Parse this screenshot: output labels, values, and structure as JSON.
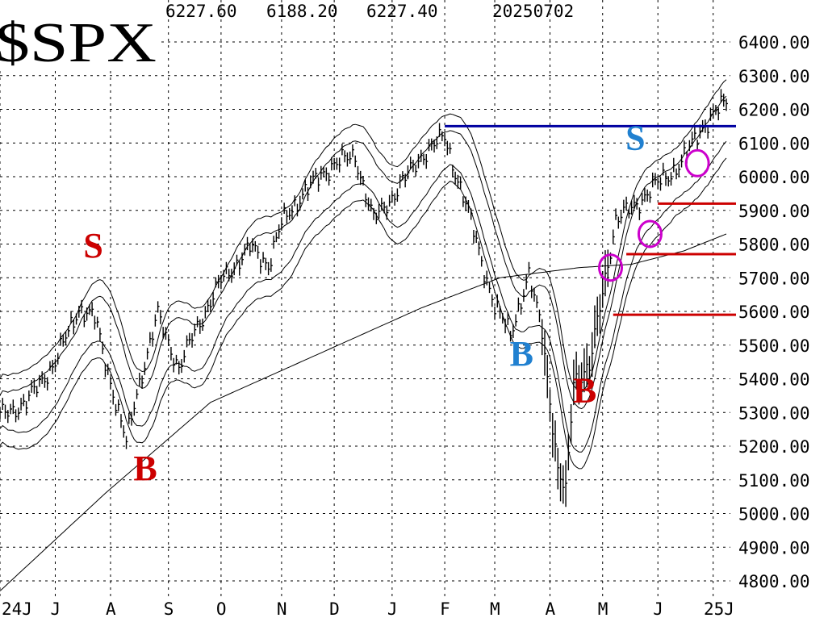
{
  "chart_data": {
    "type": "line",
    "symbol": "$SPX",
    "header": {
      "high": "6227.60",
      "low": "6188.20",
      "close": "6227.40",
      "date": "20250702"
    },
    "ylim": [
      4750,
      6450
    ],
    "grid": true,
    "yticks": [
      "6400.00",
      "6300.00",
      "6200.00",
      "6100.00",
      "6000.00",
      "5900.00",
      "5800.00",
      "5700.00",
      "5600.00",
      "5500.00",
      "5400.00",
      "5300.00",
      "5200.00",
      "5100.00",
      "5000.00",
      "4900.00",
      "4800.00"
    ],
    "ytick_values": [
      6400,
      6300,
      6200,
      6100,
      6000,
      5900,
      5800,
      5700,
      5600,
      5500,
      5400,
      5300,
      5200,
      5100,
      5000,
      4900,
      4800
    ],
    "months": [
      "24J",
      "J",
      "A",
      "S",
      "O",
      "N",
      "D",
      "J",
      "F",
      "M",
      "A",
      "M",
      "J",
      "25J"
    ],
    "month_index": [
      0,
      21,
      42,
      64,
      84,
      107,
      127,
      149,
      169,
      188,
      209,
      229,
      250,
      271
    ],
    "n_bars": 277,
    "close_anchors": [
      [
        0,
        5290
      ],
      [
        10,
        5330
      ],
      [
        21,
        5450
      ],
      [
        30,
        5610
      ],
      [
        36,
        5580
      ],
      [
        44,
        5330
      ],
      [
        48,
        5210
      ],
      [
        52,
        5360
      ],
      [
        60,
        5590
      ],
      [
        68,
        5430
      ],
      [
        74,
        5540
      ],
      [
        84,
        5690
      ],
      [
        95,
        5790
      ],
      [
        102,
        5740
      ],
      [
        107,
        5860
      ],
      [
        115,
        5950
      ],
      [
        127,
        6040
      ],
      [
        135,
        6060
      ],
      [
        142,
        5870
      ],
      [
        149,
        5940
      ],
      [
        160,
        6060
      ],
      [
        169,
        6120
      ],
      [
        174,
        5990
      ],
      [
        180,
        5840
      ],
      [
        188,
        5610
      ],
      [
        194,
        5540
      ],
      [
        201,
        5700
      ],
      [
        206,
        5550
      ],
      [
        212,
        5120
      ],
      [
        215,
        5060
      ],
      [
        218,
        5400
      ],
      [
        224,
        5430
      ],
      [
        229,
        5660
      ],
      [
        234,
        5870
      ],
      [
        242,
        5920
      ],
      [
        250,
        5980
      ],
      [
        259,
        6040
      ],
      [
        266,
        6140
      ],
      [
        271,
        6180
      ],
      [
        276,
        6225
      ]
    ],
    "ma200_anchors": [
      [
        0,
        4770
      ],
      [
        40,
        5060
      ],
      [
        80,
        5330
      ],
      [
        120,
        5470
      ],
      [
        160,
        5610
      ],
      [
        190,
        5700
      ],
      [
        220,
        5730
      ],
      [
        240,
        5740
      ],
      [
        260,
        5780
      ],
      [
        276,
        5830
      ]
    ],
    "annotations": {
      "resistance": {
        "value": 6150,
        "color": "#0000a0"
      },
      "support_levels": [
        5920,
        5770,
        5590
      ],
      "support_color": "#cc0000",
      "circle_color": "#cc00cc",
      "circles": [
        [
          232,
          5730
        ],
        [
          247,
          5830
        ],
        [
          265,
          6040
        ]
      ],
      "labels": [
        {
          "text": "S",
          "color": "#cc0000",
          "bar": 36,
          "value": 5760
        },
        {
          "text": "B",
          "color": "#cc0000",
          "bar": 55,
          "value": 5100
        },
        {
          "text": "B",
          "color": "#2080d0",
          "bar": 198,
          "value": 5440
        },
        {
          "text": "B",
          "color": "#cc0000",
          "bar": 222,
          "value": 5330
        },
        {
          "text": "S",
          "color": "#2080d0",
          "bar": 242,
          "value": 6080
        }
      ]
    }
  }
}
